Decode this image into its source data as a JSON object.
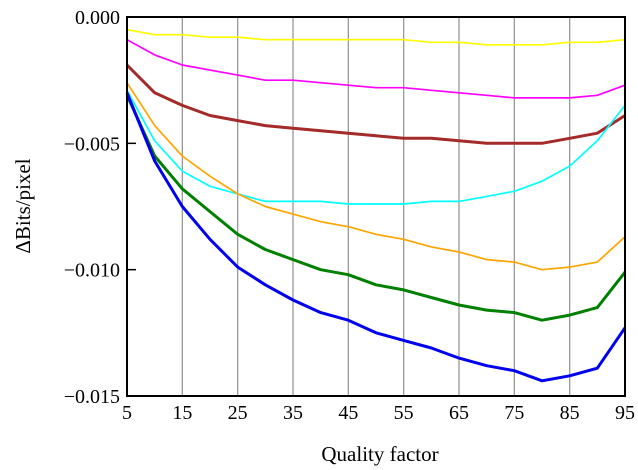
{
  "chart_data": {
    "type": "line",
    "xlabel": "Quality factor",
    "ylabel": "ΔBits/pixel",
    "xlim": [
      5,
      95
    ],
    "ylim": [
      -0.015,
      0.0
    ],
    "grid": true,
    "x_ticks": [
      "5",
      "15",
      "25",
      "35",
      "45",
      "55",
      "65",
      "75",
      "85",
      "95"
    ],
    "y_ticks": [
      "0.000",
      "−0.005",
      "−0.010",
      "−0.015"
    ],
    "x": [
      5,
      10,
      15,
      20,
      25,
      30,
      35,
      40,
      45,
      50,
      55,
      60,
      65,
      70,
      75,
      80,
      85,
      90,
      95
    ],
    "series": [
      {
        "color": "#ffff00",
        "width": "thin",
        "values": [
          -0.0005,
          -0.0007,
          -0.0007,
          -0.0008,
          -0.0008,
          -0.0009,
          -0.0009,
          -0.0009,
          -0.0009,
          -0.0009,
          -0.0009,
          -0.001,
          -0.001,
          -0.0011,
          -0.0011,
          -0.0011,
          -0.001,
          -0.001,
          -0.0009
        ]
      },
      {
        "color": "#ff00ff",
        "width": "thin",
        "values": [
          -0.0009,
          -0.0015,
          -0.0019,
          -0.0021,
          -0.0023,
          -0.0025,
          -0.0025,
          -0.0026,
          -0.0027,
          -0.0028,
          -0.0028,
          -0.0029,
          -0.003,
          -0.0031,
          -0.0032,
          -0.0032,
          -0.0032,
          -0.0031,
          -0.0027
        ]
      },
      {
        "color": "#a52a2a",
        "width": "thick",
        "values": [
          -0.0019,
          -0.003,
          -0.0035,
          -0.0039,
          -0.0041,
          -0.0043,
          -0.0044,
          -0.0045,
          -0.0046,
          -0.0047,
          -0.0048,
          -0.0048,
          -0.0049,
          -0.005,
          -0.005,
          -0.005,
          -0.0048,
          -0.0046,
          -0.0039
        ]
      },
      {
        "color": "#00ffff",
        "width": "thin",
        "values": [
          -0.0029,
          -0.0049,
          -0.0061,
          -0.0067,
          -0.007,
          -0.0073,
          -0.0073,
          -0.0073,
          -0.0074,
          -0.0074,
          -0.0074,
          -0.0073,
          -0.0073,
          -0.0071,
          -0.0069,
          -0.0065,
          -0.0059,
          -0.0049,
          -0.0035
        ]
      },
      {
        "color": "#ffa500",
        "width": "thin",
        "values": [
          -0.0026,
          -0.0043,
          -0.0055,
          -0.0063,
          -0.007,
          -0.0075,
          -0.0078,
          -0.0081,
          -0.0083,
          -0.0086,
          -0.0088,
          -0.0091,
          -0.0093,
          -0.0096,
          -0.0097,
          -0.01,
          -0.0099,
          -0.0097,
          -0.0087
        ]
      },
      {
        "color": "#008000",
        "width": "thick",
        "values": [
          -0.0031,
          -0.0055,
          -0.0068,
          -0.0077,
          -0.0086,
          -0.0092,
          -0.0096,
          -0.01,
          -0.0102,
          -0.0106,
          -0.0108,
          -0.0111,
          -0.0114,
          -0.0116,
          -0.0117,
          -0.012,
          -0.0118,
          -0.0115,
          -0.0101
        ]
      },
      {
        "color": "#0000ee",
        "width": "thick",
        "values": [
          -0.003,
          -0.0057,
          -0.0075,
          -0.0088,
          -0.0099,
          -0.0106,
          -0.0112,
          -0.0117,
          -0.012,
          -0.0125,
          -0.0128,
          -0.0131,
          -0.0135,
          -0.0138,
          -0.014,
          -0.0144,
          -0.0142,
          -0.0139,
          -0.0123
        ]
      }
    ]
  }
}
